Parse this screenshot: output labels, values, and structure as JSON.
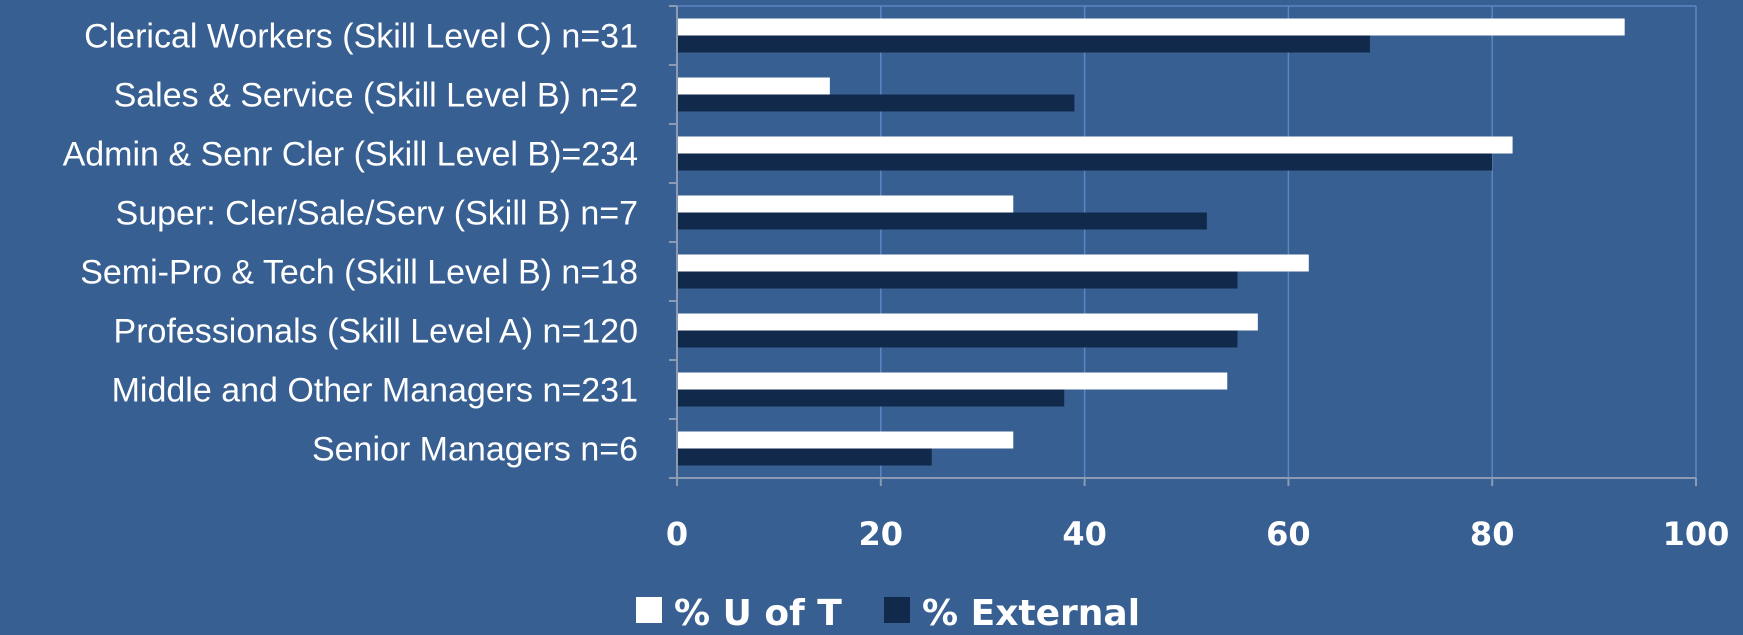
{
  "chart_data": {
    "type": "bar",
    "orientation": "horizontal",
    "categories": [
      "Clerical Workers (Skill Level C) n=31",
      "Sales & Service (Skill Level B) n=2",
      "Admin & Senr Cler (Skill Level B)=234",
      "Super: Cler/Sale/Serv (Skill B) n=7",
      "Semi-Pro & Tech (Skill Level B) n=18",
      "Professionals (Skill Level A) n=120",
      "Middle and Other Managers n=231",
      "Senior Managers n=6"
    ],
    "series": [
      {
        "name": "% U of T",
        "color": "#ffffff",
        "values": [
          93,
          15,
          82,
          33,
          62,
          57,
          54,
          33
        ]
      },
      {
        "name": "% External",
        "color": "#112a4b",
        "values": [
          68,
          39,
          80,
          52,
          55,
          55,
          38,
          25
        ]
      }
    ],
    "xlim": [
      0,
      100
    ],
    "xticks": [
      "0",
      "20",
      "40",
      "60",
      "80",
      "100"
    ],
    "grid": true,
    "legend_position": "bottom",
    "colors": {
      "background": "#375f92",
      "gridline": "#5b86c4",
      "axis": "#8a9bb3"
    }
  }
}
